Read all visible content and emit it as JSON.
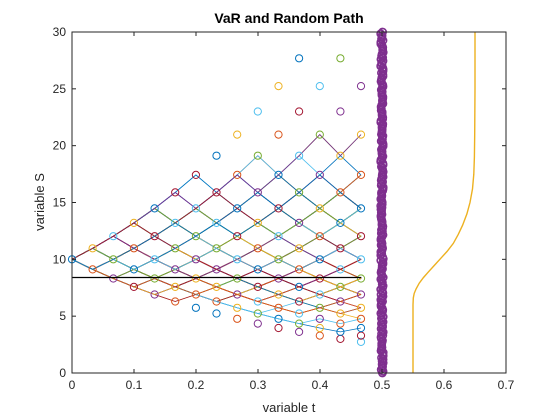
{
  "chart_data": {
    "type": "scatter",
    "title": "VaR and Random Path",
    "xlabel": "variable t",
    "ylabel": "variable S",
    "xlim": [
      0,
      0.7
    ],
    "ylim": [
      0,
      30
    ],
    "xticks": [
      "0",
      "0.1",
      "0.2",
      "0.3",
      "0.4",
      "0.5",
      "0.6",
      "0.7"
    ],
    "yticks": [
      "0",
      "5",
      "10",
      "15",
      "20",
      "25",
      "30"
    ],
    "grid": false,
    "box": true,
    "n_steps": 14,
    "dt": 0.0333,
    "S0": 10,
    "up_factor": 1.097,
    "n_paths": 120,
    "var_level": 8.4,
    "var_line_x": [
      0,
      0.4667
    ],
    "terminal_x": 0.5,
    "terminal_range": [
      0,
      30
    ],
    "cdf_curve": {
      "x0": 0.55,
      "x1": 0.65,
      "points": [
        [
          0.55,
          0.0
        ],
        [
          0.55,
          6.0
        ],
        [
          0.5505,
          6.6
        ],
        [
          0.552,
          7.0
        ],
        [
          0.555,
          7.4
        ],
        [
          0.56,
          7.9
        ],
        [
          0.567,
          8.4
        ],
        [
          0.575,
          8.9
        ],
        [
          0.585,
          9.5
        ],
        [
          0.595,
          10.1
        ],
        [
          0.605,
          10.7
        ],
        [
          0.615,
          11.4
        ],
        [
          0.623,
          12.2
        ],
        [
          0.63,
          13.0
        ],
        [
          0.637,
          14.0
        ],
        [
          0.642,
          15.0
        ],
        [
          0.646,
          16.2
        ],
        [
          0.648,
          17.5
        ],
        [
          0.649,
          19.0
        ],
        [
          0.6495,
          21.0
        ],
        [
          0.65,
          25.0
        ],
        [
          0.65,
          30.0
        ]
      ]
    },
    "colors": {
      "series": [
        "#0072BD",
        "#D95319",
        "#EDB120",
        "#7E2F8E",
        "#77AC30",
        "#4DBEEE",
        "#A2142F"
      ],
      "terminal": "#7E2F8E",
      "var_line": "#000000",
      "cdf": "#EDB120",
      "axis": "#262626"
    }
  }
}
